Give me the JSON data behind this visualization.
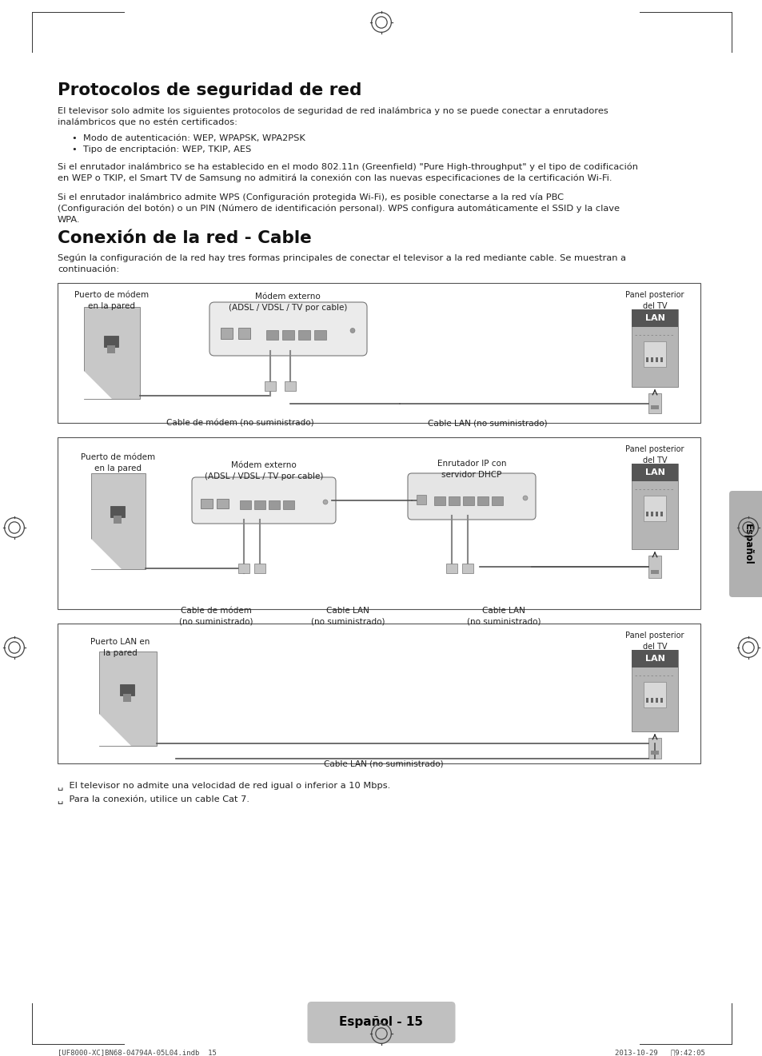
{
  "page_bg": "#ffffff",
  "text_color": "#222222",
  "gray_color": "#888888",
  "tab_color": "#aaaaaa",
  "title1": "Protocolos de seguridad de red",
  "title2": "Conexión de la red - Cable",
  "p1_line1": "El televisor solo admite los siguientes protocolos de seguridad de red inalámbrica y no se puede conectar a enrutadores",
  "p1_line2": "inalámbricos que no estén certificados:",
  "bullet1": "•  Modo de autenticación: WEP, WPAPSK, WPA2PSK",
  "bullet2": "•  Tipo de encriptación: WEP, TKIP, AES",
  "p2_line1": "Si el enrutador inalámbrico se ha establecido en el modo 802.11n (Greenfield) \"Pure High-throughput\" y el tipo de codificación",
  "p2_line2": "en WEP o TKIP, el Smart TV de Samsung no admitirá la conexión con las nuevas especificaciones de la certificación Wi-Fi.",
  "p3_line1": "Si el enrutador inalámbrico admite WPS (Configuración protegida Wi-Fi), es posible conectarse a la red vía PBC",
  "p3_line2": "(Configuración del botón) o un PIN (Número de identificación personal). WPS configura automáticamente el SSID y la clave",
  "p3_line3": "WPA.",
  "p4_line1": "Según la configuración de la red hay tres formas principales de conectar el televisor a la red mediante cable. Se muestran a",
  "p4_line2": "continuación:",
  "note1": "␣  El televisor no admite una velocidad de red igual o inferior a 10 Mbps.",
  "note2": "␣  Para la conexión, utilice un cable Cat 7.",
  "footer_text": "Español - 15",
  "footer_left": "[UF8000-XC]BN68-04794A-05L04.indb  15",
  "footer_right": "2013-10-29   Ⅱ9:42:05",
  "side_tab": "Español",
  "lan_label": "LAN",
  "panel_label": "Panel posterior\ndel TV",
  "box1_left_label": "Puerto de módem\nen la pared",
  "box1_center_label": "Módem externo\n(ADSL / VDSL / TV por cable)",
  "box1_cable1": "Cable de módem (no suministrado)",
  "box1_cable2": "Cable LAN (no suministrado)",
  "box2_left_label": "Puerto de módem\nen la pared",
  "box2_center_label": "Módem externo\n(ADSL / VDSL / TV por cable)",
  "box2_center2_label": "Enrutador IP con\nservidor DHCP",
  "box2_cable1": "Cable de módem\n(no suministrado)",
  "box2_cable2": "Cable LAN\n(no suministrado)",
  "box2_cable3": "Cable LAN\n(no suministrado)",
  "box3_left_label": "Puerto LAN en\nla pared",
  "box3_cable": "Cable LAN (no suministrado)"
}
